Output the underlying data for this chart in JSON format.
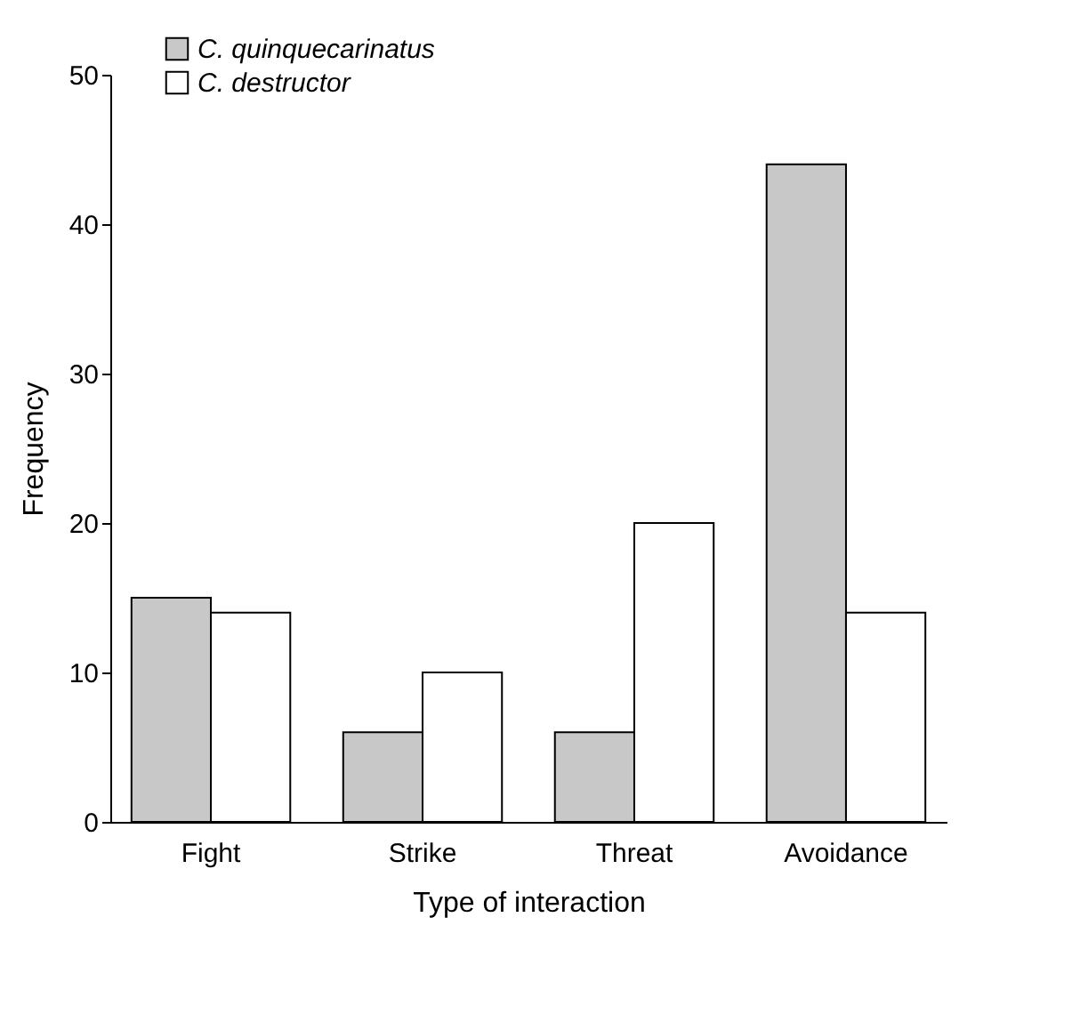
{
  "chart_data": {
    "type": "bar",
    "xlabel": "Type of interaction",
    "ylabel": "Frequency",
    "categories": [
      "Fight",
      "Strike",
      "Threat",
      "Avoidance"
    ],
    "series": [
      {
        "name": "C. quinquecarinatus",
        "color": "#c8c8c8",
        "values": [
          15,
          6,
          6,
          44
        ]
      },
      {
        "name": "C. destructor",
        "color": "#ffffff",
        "values": [
          14,
          10,
          20,
          14
        ]
      }
    ],
    "ylim": [
      0,
      50
    ],
    "yticks": [
      0,
      10,
      20,
      30,
      40,
      50
    ],
    "grid": false,
    "legend": "top left"
  }
}
